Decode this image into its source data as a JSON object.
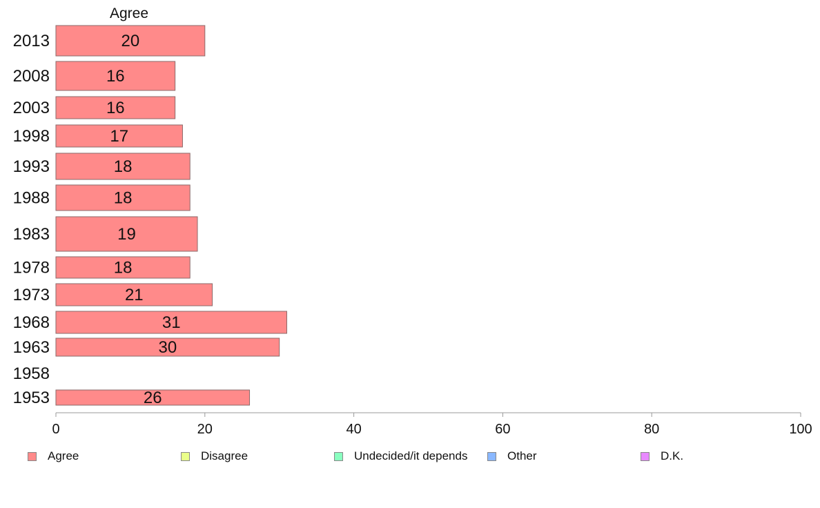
{
  "chart_data": {
    "type": "bar",
    "orientation": "horizontal",
    "panel_title": "Agree",
    "categories": [
      "2013",
      "2008",
      "2003",
      "1998",
      "1993",
      "1988",
      "1983",
      "1978",
      "1973",
      "1968",
      "1963",
      "1958",
      "1953"
    ],
    "series": [
      {
        "name": "Agree",
        "color": "#ff8a8a",
        "values": [
          20,
          16,
          16,
          17,
          18,
          18,
          19,
          18,
          21,
          31,
          30,
          null,
          26
        ],
        "labels": [
          "20",
          "16",
          "16",
          "17",
          "18",
          "18",
          "19",
          "18",
          "21",
          "31",
          "30",
          "",
          "26"
        ]
      }
    ],
    "xlim": [
      0,
      100
    ],
    "xticks": [
      "0",
      "20",
      "40",
      "60",
      "80",
      "100"
    ],
    "grid": false,
    "legend_position": "bottom",
    "legend": [
      {
        "label": "Agree",
        "color": "#ff8a8a"
      },
      {
        "label": "Disagree",
        "color": "#eaff8a"
      },
      {
        "label": "Undecided/it depends",
        "color": "#8affc0"
      },
      {
        "label": "Other",
        "color": "#8ab8ff"
      },
      {
        "label": "D.K.",
        "color": "#e88aff"
      }
    ]
  }
}
